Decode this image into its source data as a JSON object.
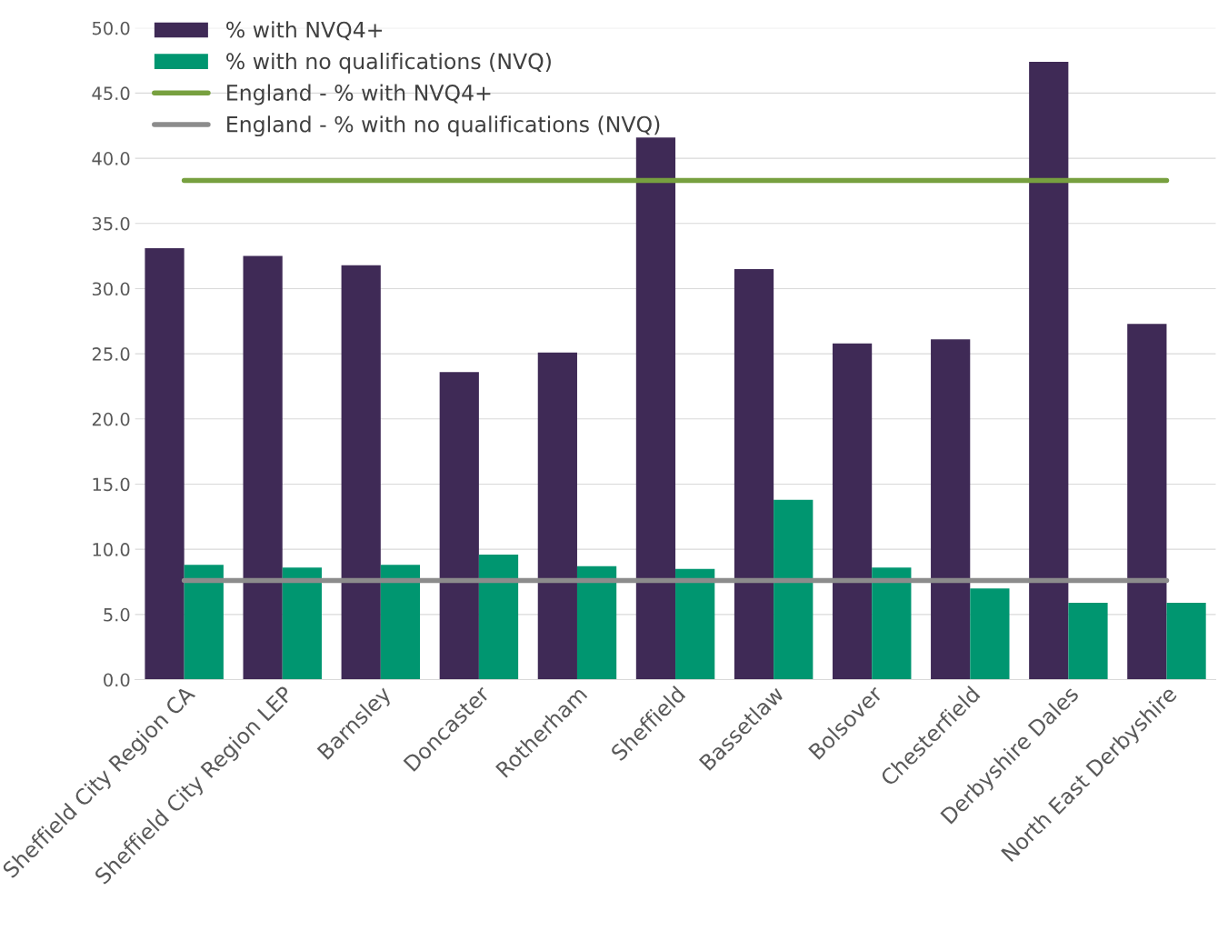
{
  "chart_data": {
    "type": "bar",
    "categories": [
      "Sheffield City Region CA",
      "Sheffield City Region LEP",
      "Barnsley",
      "Doncaster",
      "Rotherham",
      "Sheffield",
      "Bassetlaw",
      "Bolsover",
      "Chesterfield",
      "Derbyshire Dales",
      "North East Derbyshire"
    ],
    "series": [
      {
        "name": "% with NVQ4+",
        "color": "#3f2a56",
        "values": [
          33.1,
          32.5,
          31.8,
          23.6,
          25.1,
          41.6,
          31.5,
          25.8,
          26.1,
          47.4,
          27.3
        ]
      },
      {
        "name": "% with no qualifications (NVQ)",
        "color": "#009670",
        "values": [
          8.8,
          8.6,
          8.8,
          9.6,
          8.7,
          8.5,
          13.8,
          8.6,
          7.0,
          5.9,
          5.9
        ]
      },
      {
        "name": "England - % with NVQ4+",
        "color": "#77a03f",
        "type": "line",
        "values": [
          38.3,
          38.3,
          38.3,
          38.3,
          38.3,
          38.3,
          38.3,
          38.3,
          38.3,
          38.3,
          38.3
        ]
      },
      {
        "name": "England - % with no qualifications (NVQ)",
        "color": "#8c8c8c",
        "type": "line",
        "values": [
          7.6,
          7.6,
          7.6,
          7.6,
          7.6,
          7.6,
          7.6,
          7.6,
          7.6,
          7.6,
          7.6
        ]
      }
    ],
    "ylim": [
      0,
      50
    ],
    "yticks": [
      {
        "value": 0,
        "label": "0.0"
      },
      {
        "value": 5,
        "label": "5.0"
      },
      {
        "value": 10,
        "label": "10.0"
      },
      {
        "value": 15,
        "label": "15.0"
      },
      {
        "value": 20,
        "label": "20.0"
      },
      {
        "value": 25,
        "label": "25.0"
      },
      {
        "value": 30,
        "label": "30.0"
      },
      {
        "value": 35,
        "label": "35.0"
      },
      {
        "value": 40,
        "label": "40.0"
      },
      {
        "value": 45,
        "label": "45.0"
      },
      {
        "value": 50,
        "label": "50.0"
      }
    ],
    "grid": "y",
    "legend": "top left",
    "marker": "none",
    "line_style": "solid"
  }
}
